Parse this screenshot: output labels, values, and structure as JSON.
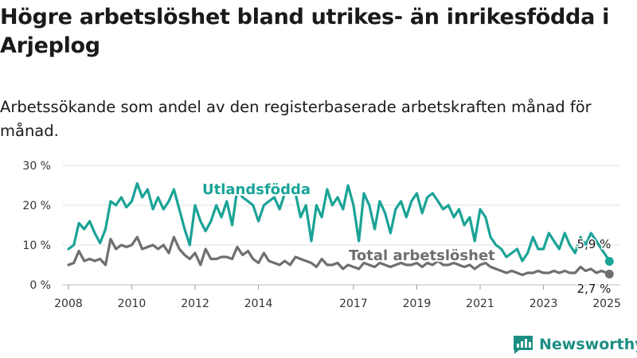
{
  "title": "Högre arbetslöshet bland utrikes- än inrikesfödda i Arjeplog",
  "subtitle": "Arbetssökande som andel av den registerbaserade arbetskraften månad för månad.",
  "brand": "Newsworthy",
  "colors": {
    "accent": "#1aa396",
    "total": "#6f6f6f",
    "brand": "#1d8e84"
  },
  "chart_data": {
    "type": "line",
    "ylim": [
      0,
      30
    ],
    "y_ticks": [
      0,
      10,
      20,
      30
    ],
    "y_tick_labels": [
      "0 %",
      "10 %",
      "20 %",
      "30 %"
    ],
    "x_range": [
      2007.8,
      2025.4
    ],
    "x_ticks": [
      2008,
      2010,
      2012,
      2014,
      2017,
      2019,
      2021,
      2023,
      2025
    ],
    "x_tick_labels": [
      "2008",
      "2010",
      "2012",
      "2014",
      "2017",
      "2019",
      "2021",
      "2023",
      "2025"
    ],
    "grid": true,
    "series": [
      {
        "name": "Utlandsfödda",
        "color": "#1aa396",
        "end_label": "5,9 %",
        "x": [
          2008.0,
          2008.17,
          2008.33,
          2008.5,
          2008.67,
          2008.83,
          2009.0,
          2009.17,
          2009.33,
          2009.5,
          2009.67,
          2009.83,
          2010.0,
          2010.17,
          2010.33,
          2010.5,
          2010.67,
          2010.83,
          2011.0,
          2011.17,
          2011.33,
          2011.5,
          2011.67,
          2011.83,
          2012.0,
          2012.17,
          2012.33,
          2012.5,
          2012.67,
          2012.83,
          2013.0,
          2013.17,
          2013.33,
          2013.5,
          2013.67,
          2013.83,
          2014.0,
          2014.17,
          2014.33,
          2014.5,
          2014.67,
          2014.83,
          2015.0,
          2015.17,
          2015.33,
          2015.5,
          2015.67,
          2015.83,
          2016.0,
          2016.17,
          2016.33,
          2016.5,
          2016.67,
          2016.83,
          2017.0,
          2017.17,
          2017.33,
          2017.5,
          2017.67,
          2017.83,
          2018.0,
          2018.17,
          2018.33,
          2018.5,
          2018.67,
          2018.83,
          2019.0,
          2019.17,
          2019.33,
          2019.5,
          2019.67,
          2019.83,
          2020.0,
          2020.17,
          2020.33,
          2020.5,
          2020.67,
          2020.83,
          2021.0,
          2021.17,
          2021.33,
          2021.5,
          2021.67,
          2021.83,
          2022.0,
          2022.17,
          2022.33,
          2022.5,
          2022.67,
          2022.83,
          2023.0,
          2023.17,
          2023.33,
          2023.5,
          2023.67,
          2023.83,
          2024.0,
          2024.17,
          2024.33,
          2024.5,
          2024.67,
          2024.83,
          2025.0,
          2025.08
        ],
        "values": [
          9,
          10,
          15.5,
          14,
          16,
          13,
          10.5,
          14,
          21,
          20,
          22,
          19.5,
          21,
          25.5,
          22,
          24,
          19,
          22,
          19,
          21,
          24,
          19,
          14,
          10,
          20,
          16,
          13.5,
          16,
          20,
          17,
          21,
          15,
          24,
          22,
          21,
          20,
          16,
          20,
          21,
          22,
          19,
          23,
          25,
          23,
          17,
          20,
          11,
          20,
          17,
          24,
          20,
          22,
          19,
          25,
          20,
          11,
          23,
          20,
          14,
          21,
          18,
          13,
          19,
          21,
          17,
          21,
          23,
          18,
          22,
          23,
          21,
          19,
          20,
          17,
          19,
          15,
          17,
          11,
          19,
          17,
          12,
          10,
          9,
          7,
          8,
          9,
          6,
          8,
          12,
          9,
          9,
          13,
          11,
          9,
          13,
          10,
          8,
          12,
          10,
          13,
          11,
          9,
          7,
          5.9
        ]
      },
      {
        "name": "Total arbetslöshet",
        "color": "#6f6f6f",
        "end_label": "2,7 %",
        "x": [
          2008.0,
          2008.17,
          2008.33,
          2008.5,
          2008.67,
          2008.83,
          2009.0,
          2009.17,
          2009.33,
          2009.5,
          2009.67,
          2009.83,
          2010.0,
          2010.17,
          2010.33,
          2010.5,
          2010.67,
          2010.83,
          2011.0,
          2011.17,
          2011.33,
          2011.5,
          2011.67,
          2011.83,
          2012.0,
          2012.17,
          2012.33,
          2012.5,
          2012.67,
          2012.83,
          2013.0,
          2013.17,
          2013.33,
          2013.5,
          2013.67,
          2013.83,
          2014.0,
          2014.17,
          2014.33,
          2014.5,
          2014.67,
          2014.83,
          2015.0,
          2015.17,
          2015.33,
          2015.5,
          2015.67,
          2015.83,
          2016.0,
          2016.17,
          2016.33,
          2016.5,
          2016.67,
          2016.83,
          2017.0,
          2017.17,
          2017.33,
          2017.5,
          2017.67,
          2017.83,
          2018.0,
          2018.17,
          2018.33,
          2018.5,
          2018.67,
          2018.83,
          2019.0,
          2019.17,
          2019.33,
          2019.5,
          2019.67,
          2019.83,
          2020.0,
          2020.17,
          2020.33,
          2020.5,
          2020.67,
          2020.83,
          2021.0,
          2021.17,
          2021.33,
          2021.5,
          2021.67,
          2021.83,
          2022.0,
          2022.17,
          2022.33,
          2022.5,
          2022.67,
          2022.83,
          2023.0,
          2023.17,
          2023.33,
          2023.5,
          2023.67,
          2023.83,
          2024.0,
          2024.17,
          2024.33,
          2024.5,
          2024.67,
          2024.83,
          2025.0,
          2025.08
        ],
        "values": [
          5,
          5.5,
          8.5,
          6,
          6.5,
          6,
          6.5,
          5,
          11.5,
          9,
          10,
          9.5,
          10,
          12,
          9,
          9.5,
          10,
          9,
          10,
          8,
          12,
          9,
          7.5,
          6.5,
          8,
          5,
          9,
          6.5,
          6.5,
          7,
          7,
          6.5,
          9.5,
          7.5,
          8.5,
          6.5,
          5.5,
          8,
          6,
          5.5,
          5,
          6,
          5,
          7,
          6.5,
          6,
          5.5,
          4.5,
          6.5,
          5,
          5,
          5.5,
          4,
          5,
          4.5,
          4,
          5.5,
          5,
          4.5,
          5.5,
          5,
          4.5,
          5,
          5.5,
          5,
          5,
          5.5,
          4.5,
          5.5,
          5,
          6,
          5,
          5,
          5.5,
          5,
          4.5,
          5,
          4,
          5,
          5.5,
          4.5,
          4,
          3.5,
          3,
          3.5,
          3,
          2.5,
          3,
          3,
          3.5,
          3,
          3,
          3.5,
          3,
          3.5,
          3,
          3,
          4.5,
          3.5,
          4,
          3,
          3.5,
          3,
          2.7
        ]
      }
    ]
  }
}
